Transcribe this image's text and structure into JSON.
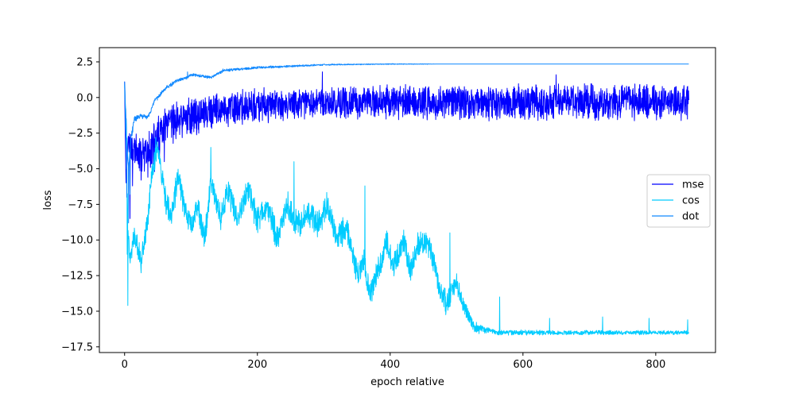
{
  "chart_data": {
    "type": "line",
    "title": "",
    "xlabel": "epoch relative",
    "ylabel": "loss",
    "xlim": [
      -38,
      890
    ],
    "ylim": [
      -17.9,
      3.5
    ],
    "xticks": [
      0,
      200,
      400,
      600,
      800
    ],
    "xtick_labels": [
      "0",
      "200",
      "400",
      "600",
      "800"
    ],
    "yticks": [
      -17.5,
      -15.0,
      -12.5,
      -10.0,
      -7.5,
      -5.0,
      -2.5,
      0.0,
      2.5
    ],
    "ytick_labels": [
      "−17.5",
      "−15.0",
      "−12.5",
      "−10.0",
      "−7.5",
      "−5.0",
      "−2.5",
      "0.0",
      "2.5"
    ],
    "grid": false,
    "legend_position": "center-right",
    "x_max": 850,
    "series": [
      {
        "name": "mse",
        "color": "#0000ff",
        "center": [
          [
            0,
            1.2
          ],
          [
            2,
            -6.0
          ],
          [
            5,
            -3.0
          ],
          [
            10,
            -3.5
          ],
          [
            20,
            -4.0
          ],
          [
            30,
            -4.2
          ],
          [
            45,
            -3.2
          ],
          [
            60,
            -2.2
          ],
          [
            80,
            -1.6
          ],
          [
            100,
            -1.3
          ],
          [
            150,
            -0.9
          ],
          [
            200,
            -0.6
          ],
          [
            300,
            -0.4
          ],
          [
            400,
            -0.3
          ],
          [
            500,
            -0.35
          ],
          [
            600,
            -0.3
          ],
          [
            700,
            -0.3
          ],
          [
            850,
            -0.3
          ]
        ],
        "halfwidth": [
          [
            0,
            0.3
          ],
          [
            10,
            1.3
          ],
          [
            50,
            1.6
          ],
          [
            100,
            1.5
          ],
          [
            200,
            1.3
          ],
          [
            300,
            1.3
          ],
          [
            400,
            1.3
          ],
          [
            600,
            1.4
          ],
          [
            850,
            1.4
          ]
        ],
        "spikes": [
          [
            8,
            -8.5
          ],
          [
            12,
            -6.2
          ],
          [
            25,
            -5.8
          ],
          [
            35,
            -5.6
          ],
          [
            45,
            -5.2
          ],
          [
            60,
            -4.5
          ],
          [
            298,
            1.8
          ],
          [
            650,
            1.6
          ]
        ]
      },
      {
        "name": "cos",
        "color": "#00ccff",
        "center": [
          [
            0,
            1.0
          ],
          [
            3,
            -4.0
          ],
          [
            5,
            -9.0
          ],
          [
            8,
            -11.5
          ],
          [
            15,
            -9.5
          ],
          [
            25,
            -11.5
          ],
          [
            35,
            -8.5
          ],
          [
            42,
            -5.0
          ],
          [
            50,
            -3.5
          ],
          [
            60,
            -7.0
          ],
          [
            70,
            -8.5
          ],
          [
            80,
            -5.5
          ],
          [
            90,
            -7.5
          ],
          [
            100,
            -9.0
          ],
          [
            110,
            -7.5
          ],
          [
            120,
            -10.0
          ],
          [
            130,
            -6.0
          ],
          [
            145,
            -8.5
          ],
          [
            155,
            -6.5
          ],
          [
            170,
            -8.5
          ],
          [
            185,
            -6.5
          ],
          [
            200,
            -8.5
          ],
          [
            215,
            -7.5
          ],
          [
            230,
            -10.0
          ],
          [
            245,
            -7.5
          ],
          [
            260,
            -9.0
          ],
          [
            275,
            -8.0
          ],
          [
            290,
            -9.0
          ],
          [
            305,
            -7.5
          ],
          [
            320,
            -10.0
          ],
          [
            335,
            -9.0
          ],
          [
            350,
            -12.5
          ],
          [
            360,
            -11.5
          ],
          [
            370,
            -14.0
          ],
          [
            380,
            -12.5
          ],
          [
            395,
            -10.0
          ],
          [
            405,
            -12.0
          ],
          [
            420,
            -10.0
          ],
          [
            430,
            -12.0
          ],
          [
            445,
            -10.0
          ],
          [
            460,
            -10.5
          ],
          [
            475,
            -13.5
          ],
          [
            485,
            -14.5
          ],
          [
            500,
            -13.0
          ],
          [
            510,
            -14.5
          ],
          [
            525,
            -16.0
          ],
          [
            535,
            -16.3
          ],
          [
            545,
            -16.3
          ],
          [
            560,
            -16.5
          ],
          [
            600,
            -16.5
          ],
          [
            700,
            -16.5
          ],
          [
            850,
            -16.5
          ]
        ],
        "halfwidth": [
          [
            0,
            0.3
          ],
          [
            20,
            1.0
          ],
          [
            200,
            1.1
          ],
          [
            400,
            1.1
          ],
          [
            500,
            0.9
          ],
          [
            530,
            0.5
          ],
          [
            550,
            0.2
          ],
          [
            850,
            0.15
          ]
        ],
        "spikes": [
          [
            5,
            -14.6
          ],
          [
            4,
            -11.0
          ],
          [
            47,
            -2.8
          ],
          [
            130,
            -3.5
          ],
          [
            255,
            -4.5
          ],
          [
            362,
            -6.2
          ],
          [
            490,
            -9.5
          ],
          [
            565,
            -14.0
          ],
          [
            640,
            -15.5
          ],
          [
            720,
            -15.4
          ],
          [
            790,
            -15.5
          ],
          [
            848,
            -15.6
          ]
        ]
      },
      {
        "name": "dot",
        "color": "#1189ff",
        "center": [
          [
            0,
            1.2
          ],
          [
            3,
            -2.5
          ],
          [
            6,
            -5.0
          ],
          [
            9,
            -3.0
          ],
          [
            15,
            -1.5
          ],
          [
            25,
            -1.3
          ],
          [
            35,
            -1.4
          ],
          [
            45,
            -0.3
          ],
          [
            60,
            0.6
          ],
          [
            80,
            1.2
          ],
          [
            95,
            1.4
          ],
          [
            100,
            1.6
          ],
          [
            130,
            1.4
          ],
          [
            150,
            1.9
          ],
          [
            200,
            2.1
          ],
          [
            250,
            2.2
          ],
          [
            300,
            2.3
          ],
          [
            400,
            2.35
          ],
          [
            500,
            2.35
          ],
          [
            600,
            2.35
          ],
          [
            850,
            2.35
          ]
        ],
        "halfwidth": [
          [
            0,
            0.4
          ],
          [
            20,
            0.2
          ],
          [
            100,
            0.12
          ],
          [
            250,
            0.08
          ],
          [
            320,
            0.05
          ],
          [
            460,
            0.02
          ],
          [
            470,
            0.0
          ],
          [
            850,
            0.0
          ]
        ],
        "spikes": [
          [
            3,
            -7.0
          ],
          [
            6,
            -8.8
          ],
          [
            8,
            -6.8
          ],
          [
            95,
            1.8
          ],
          [
            148,
            2.0
          ]
        ]
      }
    ]
  }
}
